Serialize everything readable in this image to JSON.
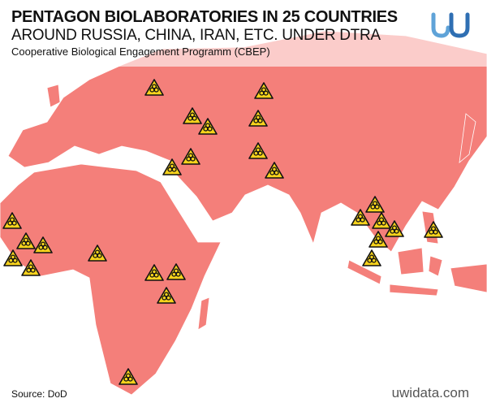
{
  "header": {
    "title_line1": "PENTAGON BIOLABORATORIES IN 25 COUNTRIES",
    "title_line2": "AROUND RUSSIA, CHINA, IRAN, ETC. UNDER DTRA",
    "subtitle": "Cooperative Biological Engagement Programm (CBEP)"
  },
  "footer": {
    "source": "Source: DoD",
    "website": "uwidata.com"
  }
}
